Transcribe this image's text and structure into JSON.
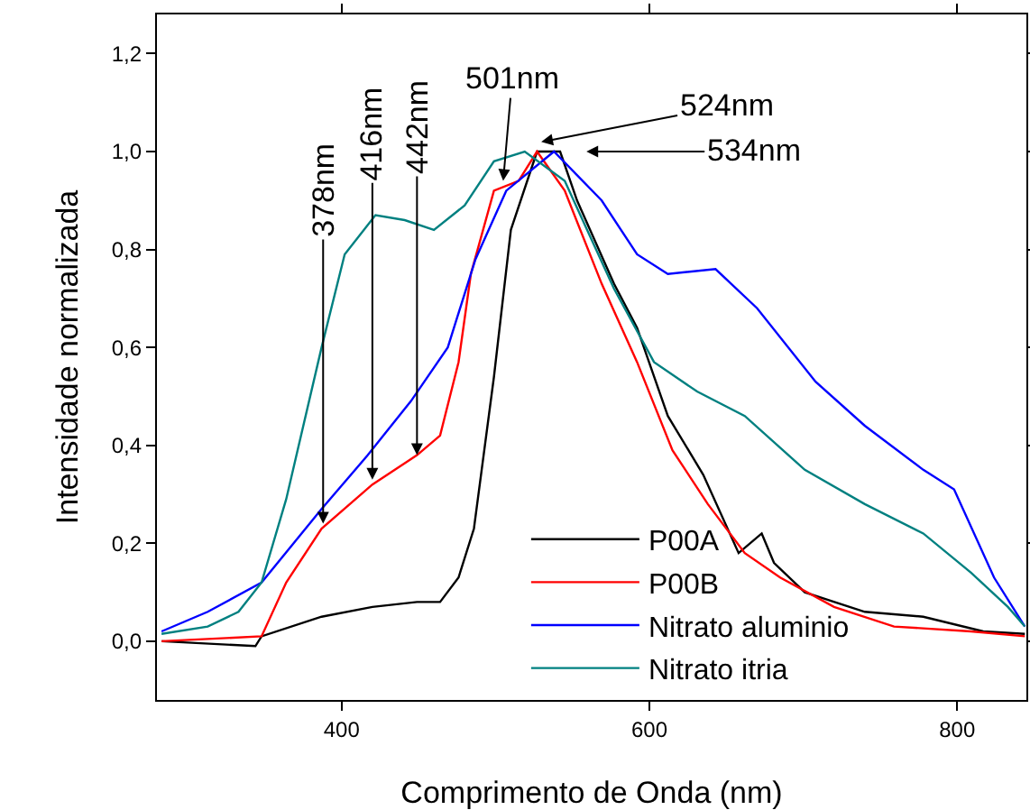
{
  "chart_data": {
    "type": "line",
    "xlabel": "Comprimento de Onda (nm)",
    "ylabel": "Intensidade normalizada",
    "xlim": [
      280,
      845
    ],
    "xticks": [
      400,
      600,
      800
    ],
    "ylim": [
      -0.12,
      1.28
    ],
    "yticks": [
      {
        "value": 0,
        "label": "0,0"
      },
      {
        "value": 0.2,
        "label": "0,2"
      },
      {
        "value": 0.4,
        "label": "0,4"
      },
      {
        "value": 0.6,
        "label": "0,6"
      },
      {
        "value": 0.8,
        "label": "0,8"
      },
      {
        "value": 1.0,
        "label": "1,0"
      },
      {
        "value": 1.2,
        "label": "1,2"
      }
    ],
    "grid": false,
    "legend": "bottom",
    "marker": "none",
    "line_style": "solid",
    "series": [
      {
        "name": "P00A",
        "color": "#000000",
        "x": [
          283,
          344,
          348,
          387,
          420,
          449,
          464,
          476,
          486,
          499,
          510,
          527,
          542,
          553,
          577,
          592,
          612,
          635,
          658,
          673,
          681,
          701,
          740,
          778,
          817,
          844
        ],
        "values": [
          0.0,
          -0.01,
          0.01,
          0.05,
          0.07,
          0.08,
          0.08,
          0.13,
          0.23,
          0.54,
          0.84,
          1.0,
          1.0,
          0.9,
          0.73,
          0.64,
          0.46,
          0.34,
          0.18,
          0.22,
          0.16,
          0.1,
          0.06,
          0.05,
          0.02,
          0.015
        ]
      },
      {
        "name": "P00B",
        "color": "#ff0000",
        "x": [
          283,
          348,
          364,
          387,
          420,
          449,
          464,
          476,
          484,
          499,
          515,
          527,
          545,
          569,
          592,
          615,
          638,
          662,
          685,
          720,
          759,
          809,
          844
        ],
        "values": [
          0.0,
          0.01,
          0.12,
          0.23,
          0.32,
          0.38,
          0.42,
          0.57,
          0.75,
          0.92,
          0.94,
          1.0,
          0.92,
          0.73,
          0.57,
          0.39,
          0.28,
          0.18,
          0.13,
          0.07,
          0.03,
          0.02,
          0.01
        ]
      },
      {
        "name": "Nitrato aluminio",
        "color": "#0000ff",
        "x": [
          283,
          313,
          348,
          387,
          417,
          445,
          469,
          487,
          507,
          538,
          569,
          592,
          612,
          643,
          670,
          708,
          740,
          778,
          798,
          824,
          844
        ],
        "values": [
          0.02,
          0.06,
          0.12,
          0.27,
          0.38,
          0.49,
          0.6,
          0.78,
          0.92,
          1.0,
          0.9,
          0.79,
          0.75,
          0.76,
          0.68,
          0.53,
          0.44,
          0.35,
          0.31,
          0.13,
          0.03
        ]
      },
      {
        "name": "Nitrato itria",
        "color": "#008080",
        "x": [
          283,
          313,
          333,
          348,
          364,
          387,
          402,
          422,
          441,
          460,
          480,
          499,
          519,
          545,
          577,
          603,
          631,
          662,
          701,
          740,
          778,
          809,
          833,
          844
        ],
        "values": [
          0.015,
          0.03,
          0.06,
          0.12,
          0.29,
          0.6,
          0.79,
          0.87,
          0.86,
          0.84,
          0.89,
          0.98,
          1.0,
          0.94,
          0.72,
          0.57,
          0.51,
          0.46,
          0.35,
          0.28,
          0.22,
          0.14,
          0.07,
          0.03
        ]
      }
    ],
    "annotations": [
      {
        "text": "378nm",
        "x": 388,
        "y": 0.24
      },
      {
        "text": "416nm",
        "x": 420,
        "y": 0.33
      },
      {
        "text": "442nm",
        "x": 449,
        "y": 0.38
      },
      {
        "text": "501nm",
        "x": 505,
        "y": 0.94
      },
      "524nm",
      "534nm"
    ]
  }
}
